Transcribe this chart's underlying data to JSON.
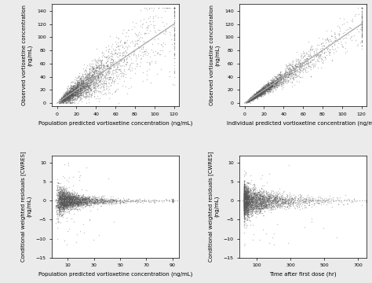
{
  "panel1": {
    "xlabel": "Population predicted vortioxetine concentration (ng/mL)",
    "ylabel1": "Observed vortioxetine concentration",
    "ylabel2": "(ng/mL)",
    "xlim": [
      -5,
      125
    ],
    "ylim": [
      -5,
      150
    ],
    "xticks": [
      0,
      20,
      40,
      60,
      80,
      100,
      120
    ],
    "yticks": [
      0,
      20,
      40,
      60,
      80,
      100,
      120,
      140
    ],
    "line_end": 120,
    "n_points": 3000,
    "x_mean": 25,
    "x_std": 20,
    "x_min": 0,
    "x_max": 120,
    "scatter_color": "#555555",
    "line_color": "#aaaaaa",
    "line_style": "-"
  },
  "panel2": {
    "xlabel": "Individual predicted vortioxetine concentration (ng/mL)",
    "ylabel1": "Observed vortioxetine concentration",
    "ylabel2": "(ng/mL)",
    "xlim": [
      -5,
      125
    ],
    "ylim": [
      -5,
      150
    ],
    "xticks": [
      0,
      20,
      40,
      60,
      80,
      100,
      120
    ],
    "yticks": [
      0,
      20,
      40,
      60,
      80,
      100,
      120,
      140
    ],
    "line_end": 120,
    "n_points": 2500,
    "x_mean": 25,
    "x_std": 20,
    "x_min": 0,
    "x_max": 120,
    "scatter_color": "#555555",
    "line_color": "#aaaaaa",
    "line_style": "-"
  },
  "panel3": {
    "xlabel": "Population predicted vortioxetine concentration (ng/mL)",
    "ylabel1": "Conditional weighted residuals [CWRES]",
    "ylabel2": "(ng/mL)",
    "xlim": [
      -2,
      95
    ],
    "ylim": [
      -15,
      12
    ],
    "xticks": [
      10,
      30,
      50,
      70,
      90
    ],
    "yticks": [
      -15,
      -10,
      -5,
      0,
      5,
      10
    ],
    "hline_y": 0,
    "n_points": 3000,
    "x_mean": 12,
    "x_std": 12,
    "x_min": 0.5,
    "x_max": 90,
    "scatter_color": "#555555",
    "line_color": "#aaaaaa",
    "line_style": ":"
  },
  "panel4": {
    "xlabel": "Time after first dose (hr)",
    "ylabel1": "Conditional weighted residuals [CWRES]",
    "ylabel2": "(ng/mL)",
    "xlim": [
      0,
      750
    ],
    "ylim": [
      -15,
      12
    ],
    "xticks": [
      100,
      300,
      500,
      700
    ],
    "yticks": [
      -15,
      -10,
      -5,
      0,
      5,
      10
    ],
    "hline_y": 0,
    "n_points": 3000,
    "x_mean": 80,
    "x_std": 100,
    "x_min": 24,
    "x_max": 750,
    "scatter_color": "#555555",
    "line_color": "#aaaaaa",
    "line_style": ":"
  },
  "background_color": "#ebebeb",
  "panel_bg": "#ffffff",
  "fontsize_label": 5.0,
  "fontsize_tick": 4.5,
  "marker_size": 1.0,
  "marker_alpha": 0.35,
  "marker_style": "o",
  "scatter_color": "#555555"
}
